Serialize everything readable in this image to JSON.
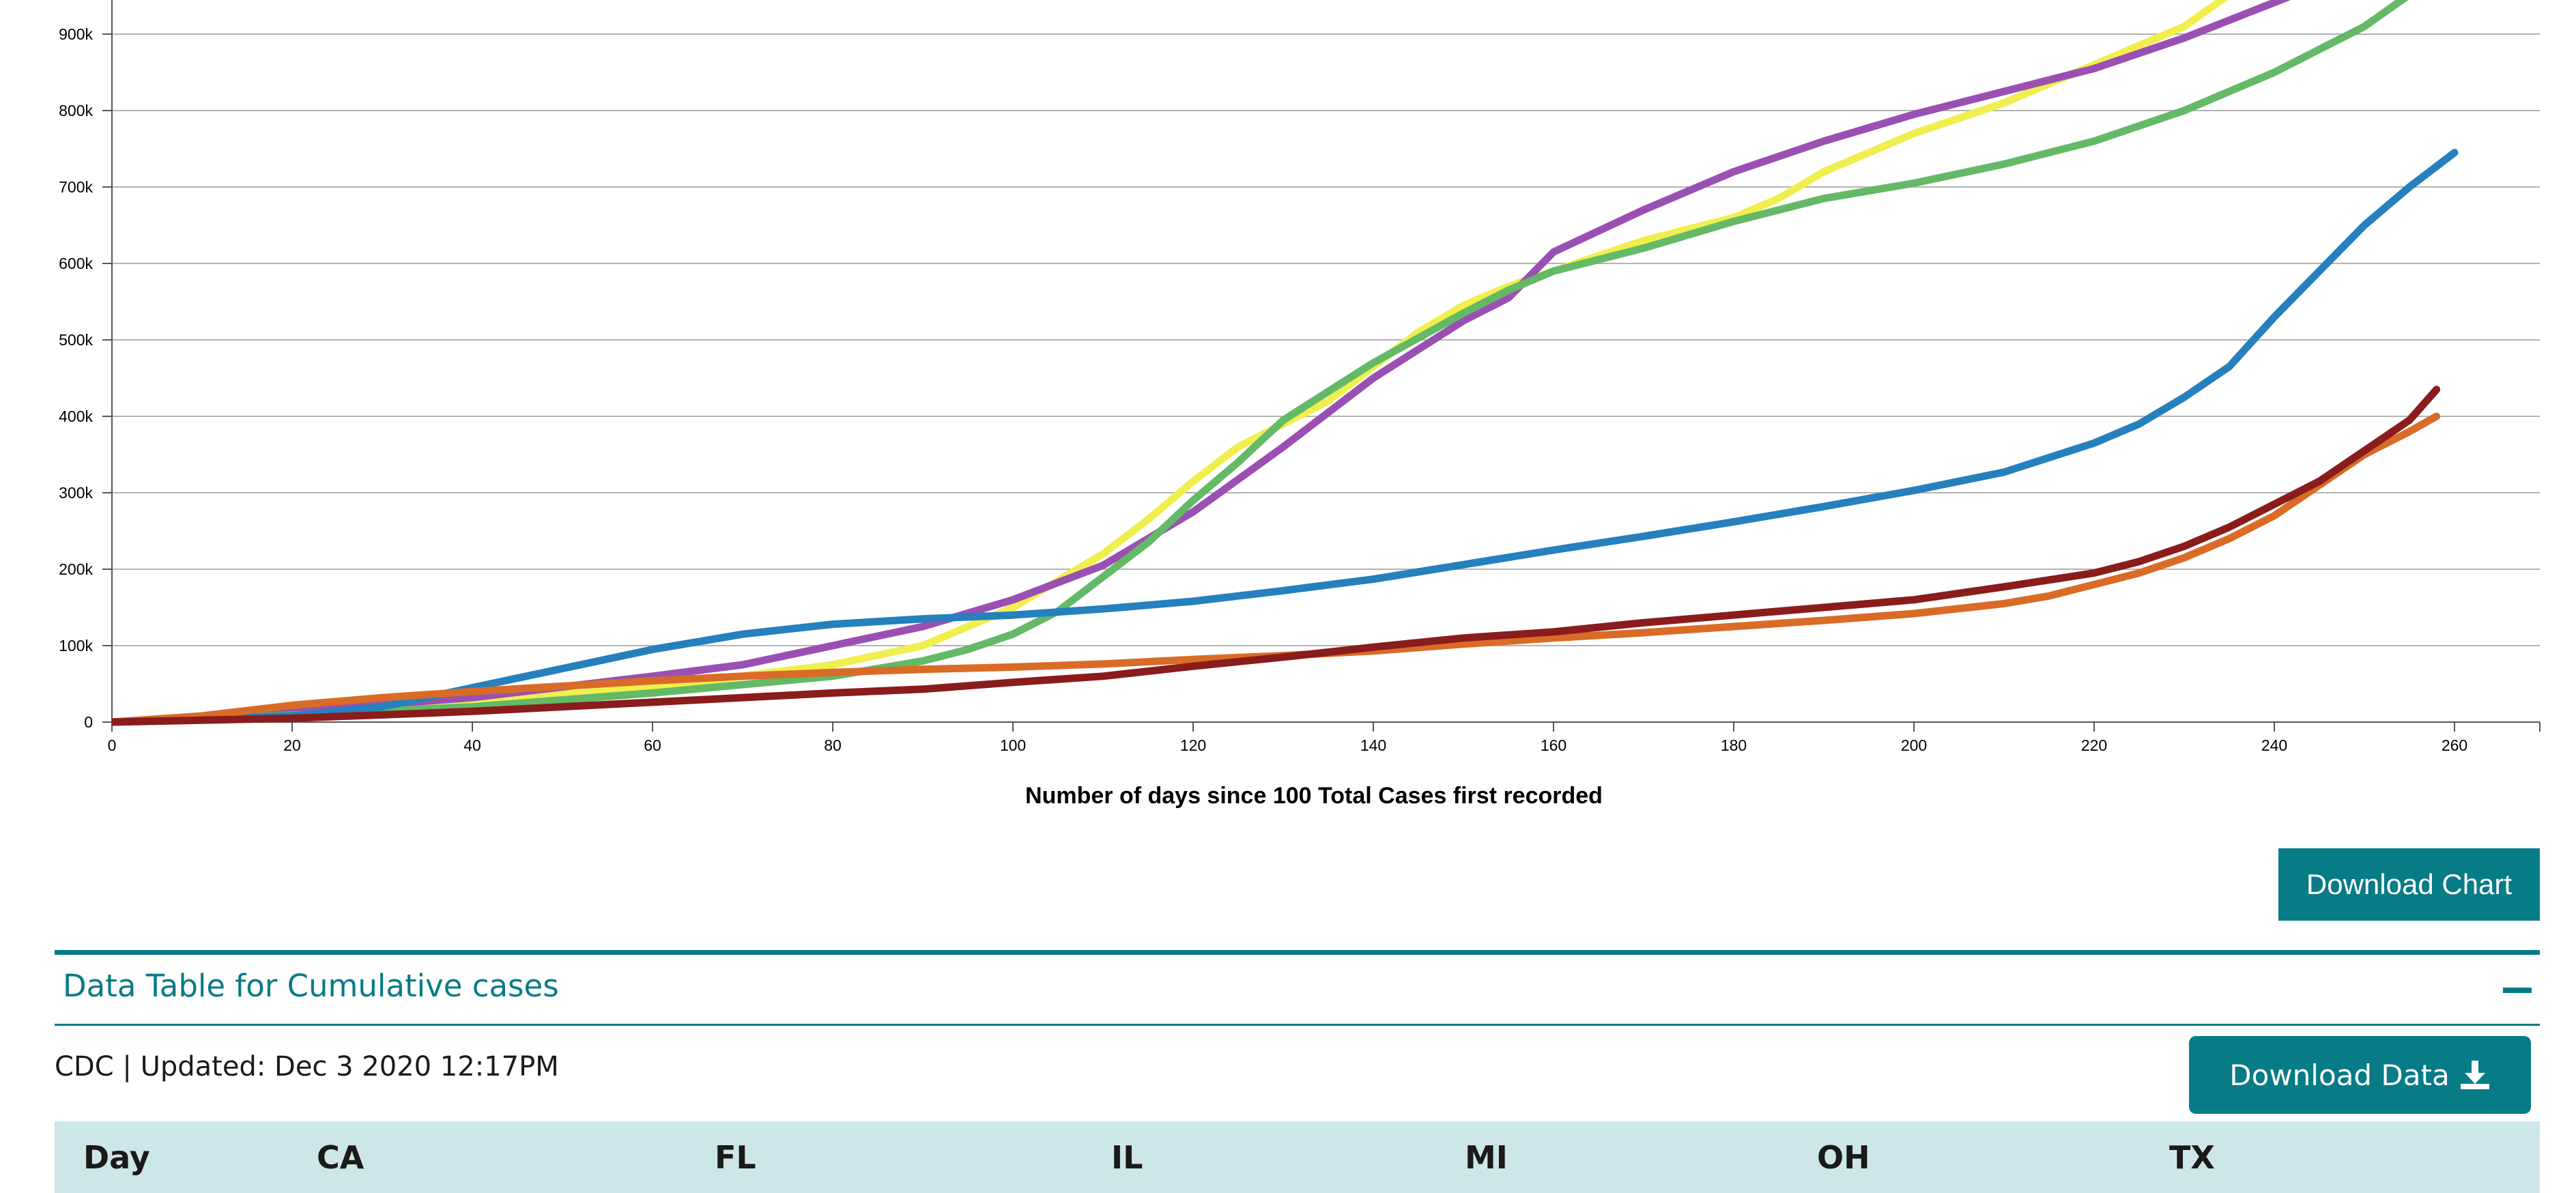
{
  "chart_data": {
    "type": "line",
    "xlabel": "Number of days since 100 Total Cases first recorded",
    "ylabel": "",
    "xlim": [
      0,
      270
    ],
    "ylim": [
      0,
      900000
    ],
    "x_ticks": [
      "0",
      "20",
      "40",
      "60",
      "80",
      "100",
      "120",
      "140",
      "160",
      "180",
      "200",
      "220",
      "240",
      "260"
    ],
    "y_ticks": [
      "0",
      "100k",
      "200k",
      "300k",
      "400k",
      "500k",
      "600k",
      "700k",
      "800k",
      "900k"
    ],
    "grid": true,
    "series": [
      {
        "color": "#f0ef4e",
        "points": [
          [
            0,
            0
          ],
          [
            10,
            6000
          ],
          [
            20,
            12000
          ],
          [
            40,
            28000
          ],
          [
            60,
            45000
          ],
          [
            80,
            75000
          ],
          [
            90,
            100000
          ],
          [
            100,
            150000
          ],
          [
            110,
            220000
          ],
          [
            115,
            265000
          ],
          [
            120,
            315000
          ],
          [
            125,
            360000
          ],
          [
            130,
            390000
          ],
          [
            135,
            420000
          ],
          [
            140,
            465000
          ],
          [
            145,
            510000
          ],
          [
            150,
            545000
          ],
          [
            155,
            570000
          ],
          [
            160,
            590000
          ],
          [
            170,
            630000
          ],
          [
            180,
            660000
          ],
          [
            185,
            685000
          ],
          [
            190,
            720000
          ],
          [
            200,
            770000
          ],
          [
            210,
            810000
          ],
          [
            220,
            860000
          ],
          [
            230,
            910000
          ],
          [
            236,
            960000
          ]
        ]
      },
      {
        "color": "#9a4fb3",
        "points": [
          [
            0,
            0
          ],
          [
            10,
            5000
          ],
          [
            20,
            14000
          ],
          [
            40,
            32000
          ],
          [
            60,
            60000
          ],
          [
            70,
            75000
          ],
          [
            80,
            100000
          ],
          [
            90,
            125000
          ],
          [
            100,
            160000
          ],
          [
            110,
            205000
          ],
          [
            120,
            275000
          ],
          [
            130,
            360000
          ],
          [
            140,
            450000
          ],
          [
            150,
            525000
          ],
          [
            155,
            555000
          ],
          [
            160,
            615000
          ],
          [
            170,
            670000
          ],
          [
            180,
            720000
          ],
          [
            190,
            760000
          ],
          [
            200,
            795000
          ],
          [
            210,
            825000
          ],
          [
            220,
            855000
          ],
          [
            230,
            895000
          ],
          [
            244,
            960000
          ]
        ]
      },
      {
        "color": "#63b966",
        "points": [
          [
            0,
            0
          ],
          [
            20,
            9000
          ],
          [
            40,
            20000
          ],
          [
            60,
            38000
          ],
          [
            80,
            60000
          ],
          [
            90,
            80000
          ],
          [
            95,
            95000
          ],
          [
            100,
            115000
          ],
          [
            105,
            145000
          ],
          [
            110,
            190000
          ],
          [
            115,
            235000
          ],
          [
            120,
            290000
          ],
          [
            125,
            340000
          ],
          [
            130,
            395000
          ],
          [
            140,
            470000
          ],
          [
            150,
            535000
          ],
          [
            155,
            565000
          ],
          [
            160,
            590000
          ],
          [
            170,
            620000
          ],
          [
            180,
            655000
          ],
          [
            190,
            685000
          ],
          [
            200,
            705000
          ],
          [
            210,
            730000
          ],
          [
            220,
            760000
          ],
          [
            230,
            800000
          ],
          [
            240,
            850000
          ],
          [
            250,
            910000
          ],
          [
            256,
            960000
          ]
        ]
      },
      {
        "color": "#2580bd",
        "points": [
          [
            0,
            0
          ],
          [
            20,
            8000
          ],
          [
            30,
            20000
          ],
          [
            40,
            45000
          ],
          [
            50,
            70000
          ],
          [
            60,
            95000
          ],
          [
            70,
            115000
          ],
          [
            80,
            128000
          ],
          [
            90,
            135000
          ],
          [
            100,
            140000
          ],
          [
            110,
            148000
          ],
          [
            120,
            158000
          ],
          [
            130,
            172000
          ],
          [
            140,
            187000
          ],
          [
            150,
            206000
          ],
          [
            160,
            225000
          ],
          [
            170,
            243000
          ],
          [
            180,
            262000
          ],
          [
            190,
            282000
          ],
          [
            200,
            303000
          ],
          [
            210,
            327000
          ],
          [
            220,
            365000
          ],
          [
            225,
            390000
          ],
          [
            230,
            425000
          ],
          [
            235,
            465000
          ],
          [
            240,
            530000
          ],
          [
            245,
            590000
          ],
          [
            250,
            650000
          ],
          [
            255,
            700000
          ],
          [
            260,
            745000
          ]
        ]
      },
      {
        "color": "#d96b27",
        "points": [
          [
            0,
            0
          ],
          [
            10,
            8000
          ],
          [
            20,
            22000
          ],
          [
            30,
            32000
          ],
          [
            40,
            40000
          ],
          [
            50,
            47000
          ],
          [
            60,
            54000
          ],
          [
            70,
            60000
          ],
          [
            80,
            65000
          ],
          [
            90,
            69000
          ],
          [
            100,
            72000
          ],
          [
            110,
            76000
          ],
          [
            120,
            82000
          ],
          [
            130,
            87000
          ],
          [
            140,
            93000
          ],
          [
            150,
            102000
          ],
          [
            160,
            110000
          ],
          [
            170,
            117000
          ],
          [
            180,
            125000
          ],
          [
            190,
            133000
          ],
          [
            200,
            142000
          ],
          [
            210,
            155000
          ],
          [
            215,
            165000
          ],
          [
            220,
            180000
          ],
          [
            225,
            195000
          ],
          [
            230,
            215000
          ],
          [
            235,
            240000
          ],
          [
            240,
            270000
          ],
          [
            245,
            310000
          ],
          [
            250,
            350000
          ],
          [
            255,
            380000
          ],
          [
            258,
            400000
          ]
        ]
      },
      {
        "color": "#8a1c1c",
        "points": [
          [
            0,
            0
          ],
          [
            20,
            5000
          ],
          [
            40,
            14000
          ],
          [
            60,
            26000
          ],
          [
            80,
            38000
          ],
          [
            90,
            43000
          ],
          [
            100,
            52000
          ],
          [
            110,
            60000
          ],
          [
            120,
            73000
          ],
          [
            130,
            85000
          ],
          [
            140,
            98000
          ],
          [
            150,
            110000
          ],
          [
            160,
            118000
          ],
          [
            170,
            130000
          ],
          [
            180,
            140000
          ],
          [
            190,
            150000
          ],
          [
            200,
            160000
          ],
          [
            210,
            177000
          ],
          [
            220,
            195000
          ],
          [
            225,
            210000
          ],
          [
            230,
            230000
          ],
          [
            235,
            255000
          ],
          [
            240,
            285000
          ],
          [
            245,
            315000
          ],
          [
            250,
            355000
          ],
          [
            255,
            395000
          ],
          [
            258,
            435000
          ]
        ]
      }
    ]
  },
  "download_chart_label": "Download Chart",
  "table_section": {
    "title": "Data Table for Cumulative cases",
    "updated": "CDC | Updated: Dec 3 2020 12:17PM",
    "download_data_label": "Download Data",
    "columns": [
      "Day",
      "CA",
      "FL",
      "IL",
      "MI",
      "OH",
      "TX"
    ]
  },
  "colors": {
    "accent": "#077b86",
    "table_header_bg": "#cde6ea"
  },
  "icons": {
    "collapse": "minus-icon",
    "download": "download-icon"
  }
}
